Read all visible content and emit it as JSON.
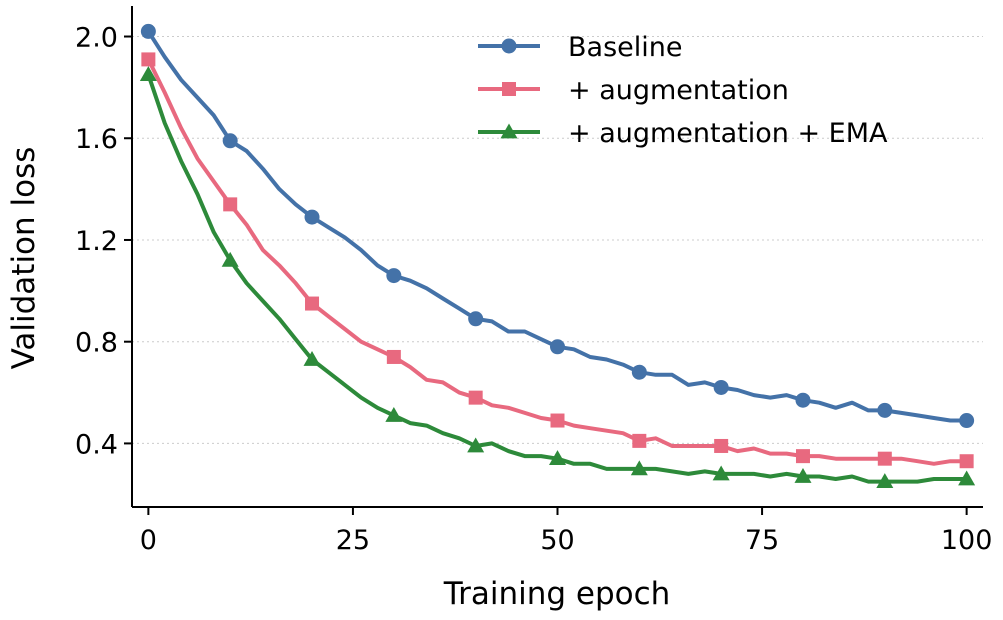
{
  "chart_data": {
    "type": "line",
    "title": "",
    "xlabel": "Training epoch",
    "ylabel": "Validation loss",
    "xlim": [
      -2,
      102
    ],
    "ylim": [
      0.15,
      2.12
    ],
    "xticks": [
      0,
      25,
      50,
      75,
      100
    ],
    "yticks": [
      0.4,
      0.8,
      1.2,
      1.6,
      2.0
    ],
    "xtick_labels": [
      "0",
      "25",
      "50",
      "75",
      "100"
    ],
    "ytick_labels": [
      "0.4",
      "0.8",
      "1.2",
      "1.6",
      "2.0"
    ],
    "grid": "horizontal-dotted",
    "legend_position": "top-right",
    "x": [
      0,
      2,
      4,
      6,
      8,
      10,
      12,
      14,
      16,
      18,
      20,
      22,
      24,
      26,
      28,
      30,
      32,
      34,
      36,
      38,
      40,
      42,
      44,
      46,
      48,
      50,
      52,
      54,
      56,
      58,
      60,
      62,
      64,
      66,
      68,
      70,
      72,
      74,
      76,
      78,
      80,
      82,
      84,
      86,
      88,
      90,
      92,
      94,
      96,
      98,
      100
    ],
    "series": [
      {
        "name": "Baseline",
        "color": "#4472a8",
        "marker": "circle",
        "values": [
          2.02,
          1.92,
          1.83,
          1.76,
          1.69,
          1.59,
          1.55,
          1.48,
          1.4,
          1.34,
          1.29,
          1.25,
          1.21,
          1.16,
          1.1,
          1.06,
          1.04,
          1.01,
          0.97,
          0.93,
          0.89,
          0.88,
          0.84,
          0.84,
          0.81,
          0.78,
          0.77,
          0.74,
          0.73,
          0.71,
          0.68,
          0.67,
          0.67,
          0.63,
          0.64,
          0.62,
          0.61,
          0.59,
          0.58,
          0.59,
          0.57,
          0.56,
          0.54,
          0.56,
          0.53,
          0.53,
          0.52,
          0.51,
          0.5,
          0.49,
          0.49
        ]
      },
      {
        "name": "+ augmentation",
        "color": "#e8697f",
        "marker": "square",
        "values": [
          1.91,
          1.78,
          1.64,
          1.52,
          1.43,
          1.34,
          1.26,
          1.16,
          1.1,
          1.03,
          0.95,
          0.9,
          0.85,
          0.8,
          0.77,
          0.74,
          0.7,
          0.65,
          0.64,
          0.6,
          0.58,
          0.55,
          0.54,
          0.52,
          0.5,
          0.49,
          0.47,
          0.46,
          0.45,
          0.44,
          0.41,
          0.42,
          0.39,
          0.39,
          0.39,
          0.39,
          0.37,
          0.38,
          0.36,
          0.36,
          0.35,
          0.35,
          0.34,
          0.34,
          0.34,
          0.34,
          0.34,
          0.33,
          0.32,
          0.33,
          0.33
        ]
      },
      {
        "name": "+ augmentation + EMA",
        "color": "#2d8a3a",
        "marker": "triangle",
        "values": [
          1.85,
          1.66,
          1.51,
          1.38,
          1.23,
          1.12,
          1.03,
          0.96,
          0.89,
          0.81,
          0.73,
          0.68,
          0.63,
          0.58,
          0.54,
          0.51,
          0.48,
          0.47,
          0.44,
          0.42,
          0.39,
          0.4,
          0.37,
          0.35,
          0.35,
          0.34,
          0.32,
          0.32,
          0.3,
          0.3,
          0.3,
          0.3,
          0.29,
          0.28,
          0.29,
          0.28,
          0.28,
          0.28,
          0.27,
          0.28,
          0.27,
          0.27,
          0.26,
          0.27,
          0.25,
          0.25,
          0.25,
          0.25,
          0.26,
          0.26,
          0.26
        ]
      }
    ],
    "marker_every": 10
  }
}
